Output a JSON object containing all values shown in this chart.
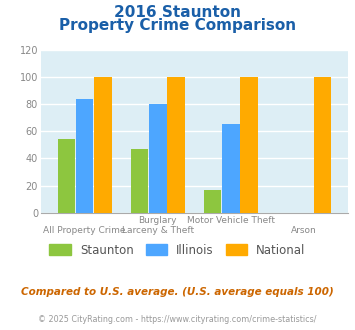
{
  "title_line1": "2016 Staunton",
  "title_line2": "Property Crime Comparison",
  "cat_labels_top": [
    "",
    "Burglary",
    "Motor Vehicle Theft",
    ""
  ],
  "cat_labels_bot": [
    "All Property Crime",
    "Larceny & Theft",
    "",
    "Arson"
  ],
  "staunton": [
    54,
    47,
    17,
    0
  ],
  "illinois": [
    84,
    80,
    65,
    0
  ],
  "national": [
    100,
    100,
    100,
    100
  ],
  "staunton_color": "#8dc63f",
  "illinois_color": "#4da6ff",
  "national_color": "#ffaa00",
  "ylim": [
    0,
    120
  ],
  "yticks": [
    0,
    20,
    40,
    60,
    80,
    100,
    120
  ],
  "background_color": "#ddeef5",
  "legend_labels": [
    "Staunton",
    "Illinois",
    "National"
  ],
  "footnote1": "Compared to U.S. average. (U.S. average equals 100)",
  "footnote2": "© 2025 CityRating.com - https://www.cityrating.com/crime-statistics/",
  "title_color": "#1a5fa8",
  "footnote1_color": "#cc6600",
  "footnote2_color": "#999999",
  "footnote2_link_color": "#4488cc"
}
